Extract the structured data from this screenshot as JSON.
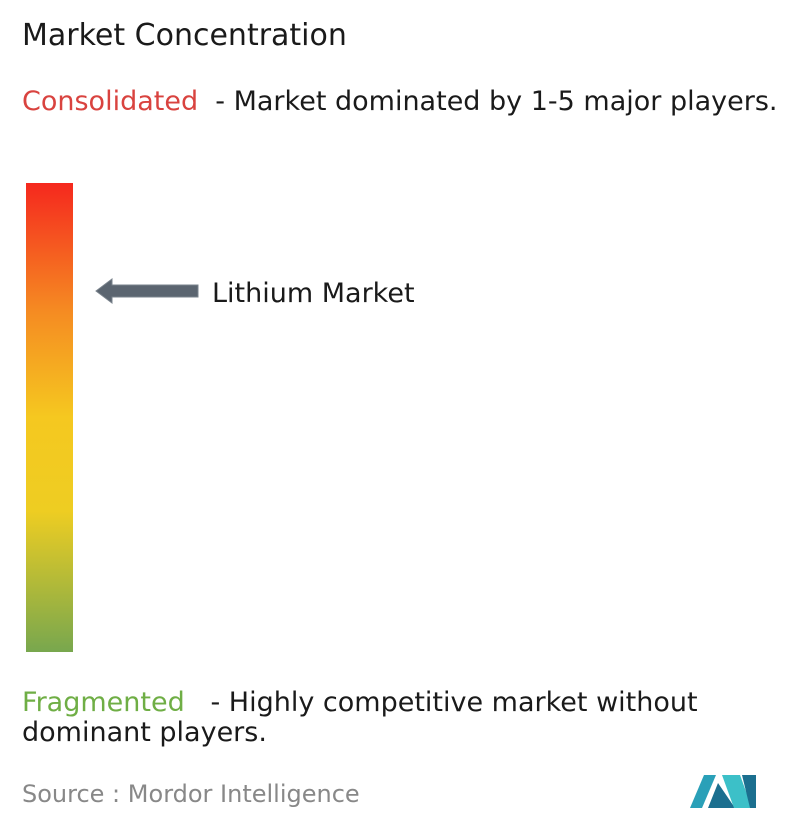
{
  "header": {
    "title": "Market Concentration"
  },
  "consolidated": {
    "label": "Consolidated",
    "description": "- Market dominated by 1-5 major players."
  },
  "marker": {
    "label": "Lithium Market"
  },
  "fragmented": {
    "label": "Fragmented",
    "description": "- Highly competitive market without dominant players."
  },
  "source": {
    "label": "Source :",
    "name": "Mordor Intelligence"
  }
}
